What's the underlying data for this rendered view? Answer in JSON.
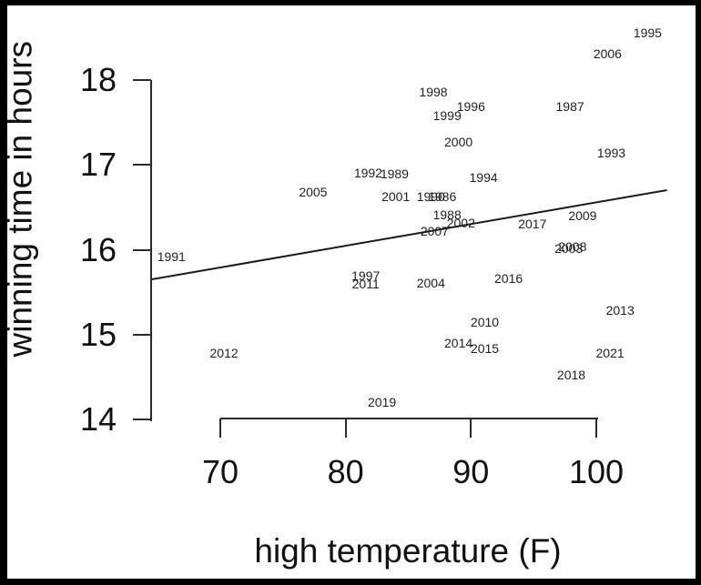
{
  "chart_data": {
    "type": "scatter",
    "title": "",
    "xlabel": "high temperature (F)",
    "ylabel": "winning time in hours",
    "x_ticks": [
      70,
      80,
      90,
      100
    ],
    "y_ticks": [
      14,
      15,
      16,
      17,
      18
    ],
    "xlim": [
      64.5,
      107.5
    ],
    "ylim": [
      14,
      18.6
    ],
    "grid": false,
    "legend": "none",
    "marker_style": "year text labels instead of dots",
    "points": [
      {
        "year": "1986",
        "temp": 87.7,
        "time": 16.63
      },
      {
        "year": "1987",
        "temp": 97.9,
        "time": 17.69
      },
      {
        "year": "1988",
        "temp": 88.1,
        "time": 16.41
      },
      {
        "year": "1989",
        "temp": 83.9,
        "time": 16.9
      },
      {
        "year": "1990",
        "temp": 86.8,
        "time": 16.63
      },
      {
        "year": "1991",
        "temp": 66.1,
        "time": 15.92
      },
      {
        "year": "1992",
        "temp": 81.8,
        "time": 16.91
      },
      {
        "year": "1993",
        "temp": 101.2,
        "time": 17.14
      },
      {
        "year": "1994",
        "temp": 91.0,
        "time": 16.85
      },
      {
        "year": "1995",
        "temp": 104.1,
        "time": 18.56
      },
      {
        "year": "1996",
        "temp": 90.0,
        "time": 17.69
      },
      {
        "year": "1997",
        "temp": 81.6,
        "time": 15.69
      },
      {
        "year": "1998",
        "temp": 87.0,
        "time": 17.86
      },
      {
        "year": "1999",
        "temp": 88.1,
        "time": 17.58
      },
      {
        "year": "2000",
        "temp": 89.0,
        "time": 17.27
      },
      {
        "year": "2001",
        "temp": 84.0,
        "time": 16.63
      },
      {
        "year": "2002",
        "temp": 89.2,
        "time": 16.32
      },
      {
        "year": "2003",
        "temp": 97.8,
        "time": 16.02
      },
      {
        "year": "2004",
        "temp": 86.8,
        "time": 15.61
      },
      {
        "year": "2005",
        "temp": 77.4,
        "time": 16.68
      },
      {
        "year": "2006",
        "temp": 100.9,
        "time": 18.31
      },
      {
        "year": "2007",
        "temp": 87.1,
        "time": 16.22
      },
      {
        "year": "2008",
        "temp": 98.1,
        "time": 16.04
      },
      {
        "year": "2009",
        "temp": 98.9,
        "time": 16.4
      },
      {
        "year": "2010",
        "temp": 91.1,
        "time": 15.15
      },
      {
        "year": "2011",
        "temp": 81.6,
        "time": 15.6
      },
      {
        "year": "2012",
        "temp": 70.3,
        "time": 14.78
      },
      {
        "year": "2013",
        "temp": 101.9,
        "time": 15.29
      },
      {
        "year": "2014",
        "temp": 89.0,
        "time": 14.9
      },
      {
        "year": "2015",
        "temp": 91.1,
        "time": 14.84
      },
      {
        "year": "2016",
        "temp": 93.0,
        "time": 15.66
      },
      {
        "year": "2017",
        "temp": 94.9,
        "time": 16.31
      },
      {
        "year": "2018",
        "temp": 98.0,
        "time": 14.53
      },
      {
        "year": "2019",
        "temp": 82.9,
        "time": 14.2
      },
      {
        "year": "2021",
        "temp": 101.1,
        "time": 14.78
      }
    ],
    "trend_line": {
      "x1": 64.55,
      "y1": 15.65,
      "x2": 105.6,
      "y2": 16.7
    }
  },
  "colors": {
    "background": "#ffffff",
    "frame_border": "#000000",
    "axis": "#2a2a2a",
    "text": "#111111",
    "point_label": "#1f1f1f",
    "trend_line": "#1a1a1a"
  }
}
